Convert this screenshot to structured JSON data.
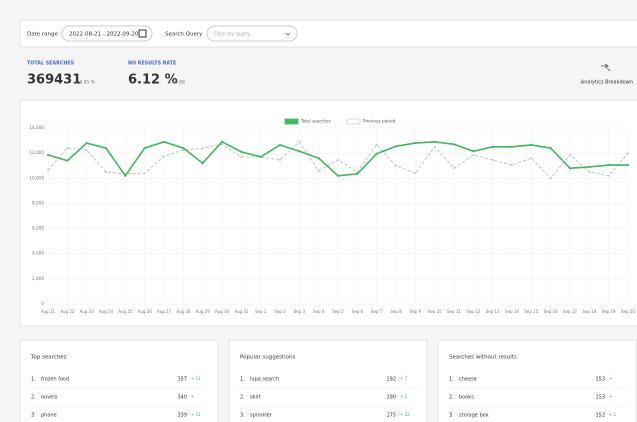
{
  "filters": {
    "date_label": "Date range",
    "date_value": "2022-08-21 - 2022-09-20",
    "query_label": "Search Query",
    "query_placeholder": "Filter by query..."
  },
  "stats": [
    {
      "label": "TOTAL SEARCHES",
      "value": "369431",
      "change": "+ 4.95 %"
    },
    {
      "label": "NO RESULTS RATE",
      "value": "6.12 %",
      "change": "+ -0.88"
    }
  ],
  "breakdown": "Analytics Breakdown",
  "chart_data": {
    "type": "line",
    "categories": [
      "Aug 21",
      "Aug 22",
      "Aug 23",
      "Aug 24",
      "Aug 25",
      "Aug 26",
      "Aug 27",
      "Aug 28",
      "Aug 29",
      "Aug 30",
      "Aug 31",
      "Sep 1",
      "Sep 2",
      "Sep 3",
      "Sep 4",
      "Sep 5",
      "Sep 6",
      "Sep 7",
      "Sep 8",
      "Sep 9",
      "Sep 10",
      "Sep 11",
      "Sep 12",
      "Sep 13",
      "Sep 14",
      "Sep 15",
      "Sep 16",
      "Sep 17",
      "Sep 18",
      "Sep 19",
      "Sep 20"
    ],
    "series": [
      {
        "name": "Total searches",
        "color": "#3dba5e",
        "values": [
          11850,
          11400,
          12800,
          12400,
          10200,
          12400,
          12900,
          12400,
          11200,
          12900,
          12100,
          11700,
          12650,
          12150,
          11600,
          10200,
          10350,
          11950,
          12550,
          12800,
          12900,
          12700,
          12150,
          12500,
          12500,
          12650,
          12400,
          10800,
          10900,
          11050,
          11050
        ]
      },
      {
        "name": "Previous period",
        "color": "#bdbdbd",
        "dashed": true,
        "values": [
          10650,
          12400,
          12250,
          10500,
          10350,
          10400,
          11750,
          12250,
          12400,
          12700,
          11700,
          11700,
          11450,
          12900,
          10600,
          11450,
          10500,
          12700,
          11000,
          10400,
          12500,
          10800,
          11850,
          11450,
          11050,
          11600,
          10000,
          11850,
          10500,
          10200,
          12000
        ]
      }
    ],
    "ylim": [
      0,
      14000
    ],
    "yticks": [
      0,
      {
        "value": 2000,
        "label": "2,000"
      },
      {
        "value": 4000,
        "label": "4,000"
      },
      {
        "value": 6000,
        "label": "6,000"
      },
      {
        "value": 8000,
        "label": "8,000"
      },
      {
        "value": 10000,
        "label": "10,000"
      },
      {
        "value": 12000,
        "label": "12,000"
      },
      {
        "value": 14000,
        "label": "14,000"
      }
    ],
    "grid": true,
    "legend": "top"
  },
  "panels": [
    {
      "title": "Top searches",
      "rows": [
        [
          "1.",
          "frozen food",
          "357",
          "+ 11"
        ],
        [
          "2.",
          "novels",
          "340",
          "+"
        ],
        [
          "3.",
          "phone",
          "339",
          "+ 11"
        ]
      ]
    },
    {
      "title": "Popular suggestions",
      "rows": [
        [
          "1.",
          "lupa search",
          "192",
          "+ 7"
        ],
        [
          "2.",
          "skirt",
          "190",
          "+ 2"
        ],
        [
          "3.",
          "sprinkler",
          "175",
          "+ 22"
        ]
      ]
    },
    {
      "title": "Searches without results",
      "rows": [
        [
          "1.",
          "cheese",
          "153",
          "+"
        ],
        [
          "2.",
          "books",
          "153",
          "+"
        ],
        [
          "3.",
          "storage box",
          "152",
          "+ 1"
        ]
      ]
    }
  ]
}
